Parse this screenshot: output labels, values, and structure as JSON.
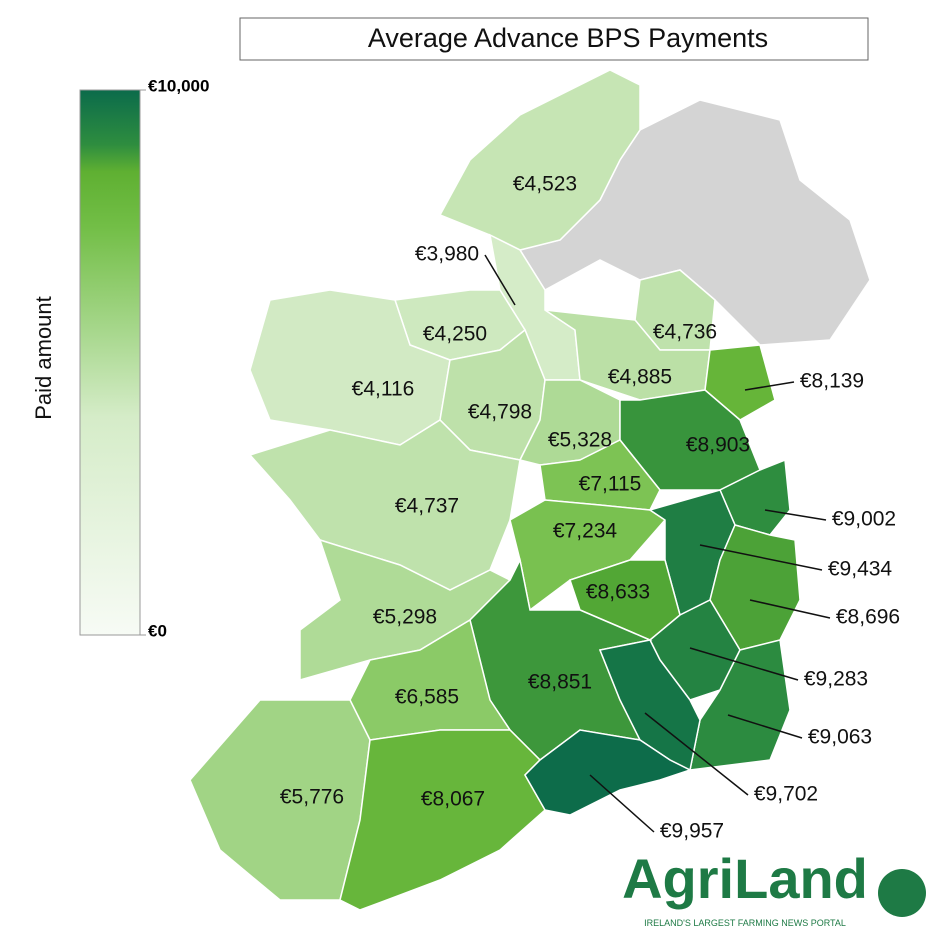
{
  "chart_data": {
    "type": "choropleth",
    "title": "Average Advance BPS Payments",
    "colorbar_label": "Paid amount",
    "colorbar_lim": [
      0,
      10000
    ],
    "colorbar_ticks": [
      {
        "value": 0,
        "label": "€0"
      },
      {
        "value": 10000,
        "label": "€10,000"
      }
    ],
    "values": [
      4523,
      3980,
      4250,
      4116,
      4798,
      4736,
      4885,
      8139,
      5328,
      8903,
      7115,
      4737,
      9002,
      7234,
      9434,
      8633,
      8696,
      5298,
      9283,
      8851,
      6585,
      9063,
      9702,
      5776,
      8067,
      9957
    ],
    "value_labels": [
      "€4,523",
      "€3,980",
      "€4,250",
      "€4,116",
      "€4,798",
      "€4,736",
      "€4,885",
      "€8,139",
      "€5,328",
      "€8,903",
      "€7,115",
      "€4,737",
      "€9,002",
      "€7,234",
      "€9,434",
      "€8,633",
      "€8,696",
      "€5,298",
      "€9,283",
      "€8,851",
      "€6,585",
      "€9,063",
      "€9,702",
      "€5,776",
      "€8,067",
      "€9,957"
    ]
  },
  "logo": {
    "name": "AgriLand",
    "tagline": "IRELAND'S LARGEST FARMING NEWS PORTAL"
  }
}
